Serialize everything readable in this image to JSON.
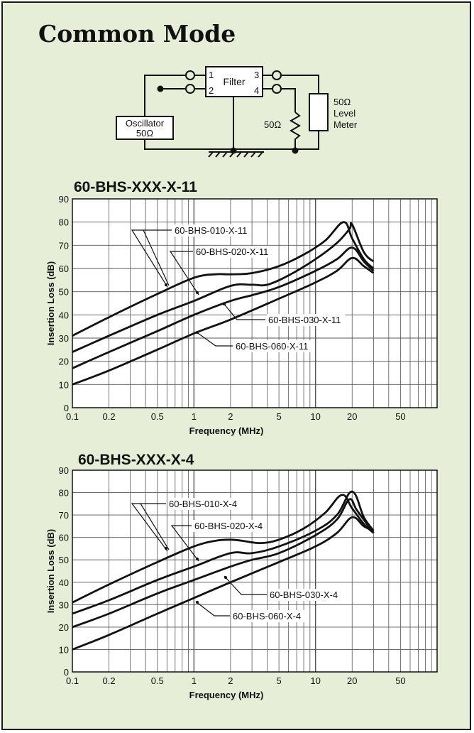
{
  "page_title": "Common Mode",
  "circuit": {
    "pin1": "1",
    "pin2": "2",
    "pin3": "3",
    "pin4": "4",
    "filter_label": "Filter",
    "oscillator_label": "Oscillator",
    "oscillator_impedance": "50Ω",
    "resistor_label": "50Ω",
    "meter_line1": "50Ω",
    "meter_line2": "Level",
    "meter_line3": "Meter"
  },
  "colors": {
    "panel_background": "#e6eed8",
    "grid": "#555555",
    "curve": "#111111"
  },
  "chart_data": [
    {
      "type": "line",
      "title": "60-BHS-XXX-X-11",
      "xlabel": "Frequency (MHz)",
      "ylabel": "Insertion Loss (dB)",
      "x_scale": "log",
      "xlim": [
        0.1,
        100
      ],
      "ylim": [
        0,
        90
      ],
      "grid": true,
      "x_tick_labels": [
        "0.1",
        "0.2",
        "0.5",
        "1",
        "2",
        "5",
        "10",
        "20",
        "50"
      ],
      "y_tick_labels": [
        "0",
        "10",
        "20",
        "30",
        "40",
        "50",
        "60",
        "70",
        "80",
        "90"
      ],
      "series": [
        {
          "name": "60-BHS-010-X-11",
          "x": [
            0.1,
            0.2,
            0.5,
            1,
            1.5,
            2,
            3,
            5,
            8,
            12,
            17,
            20,
            25,
            30
          ],
          "y": [
            31,
            39,
            49,
            56,
            57.5,
            57.5,
            58,
            61,
            66,
            72,
            80,
            73,
            64,
            60
          ]
        },
        {
          "name": "60-BHS-020-X-11",
          "x": [
            0.1,
            0.2,
            0.5,
            1,
            2,
            3,
            4,
            6,
            10,
            15,
            19,
            20,
            25,
            30
          ],
          "y": [
            24,
            31,
            40,
            46,
            52.5,
            53,
            53,
            57,
            64,
            71,
            77,
            79,
            67,
            63
          ]
        },
        {
          "name": "60-BHS-030-X-11",
          "x": [
            0.1,
            0.2,
            0.5,
            1,
            2,
            3,
            5,
            10,
            15,
            20,
            25,
            30
          ],
          "y": [
            17,
            24,
            33,
            40,
            46,
            48.5,
            52,
            59,
            64,
            69,
            63,
            59
          ]
        },
        {
          "name": "60-BHS-060-X-11",
          "x": [
            0.1,
            0.2,
            0.5,
            1,
            2,
            5,
            10,
            15,
            20,
            25,
            30
          ],
          "y": [
            10,
            16,
            25,
            32,
            38,
            47,
            54,
            59,
            64.5,
            61,
            58
          ]
        }
      ],
      "annotations": [
        "60-BHS-010-X-11",
        "60-BHS-020-X-11",
        "60-BHS-030-X-11",
        "60-BHS-060-X-11"
      ]
    },
    {
      "type": "line",
      "title": "60-BHS-XXX-X-4",
      "xlabel": "Frequency (MHz)",
      "ylabel": "Insertion Loss (dB)",
      "x_scale": "log",
      "xlim": [
        0.1,
        100
      ],
      "ylim": [
        0,
        90
      ],
      "grid": true,
      "x_tick_labels": [
        "0.1",
        "0.2",
        "0.5",
        "1",
        "2",
        "5",
        "10",
        "20",
        "50"
      ],
      "y_tick_labels": [
        "0",
        "10",
        "20",
        "30",
        "40",
        "50",
        "60",
        "70",
        "80",
        "90"
      ],
      "series": [
        {
          "name": "60-BHS-010-X-4",
          "x": [
            0.1,
            0.2,
            0.5,
            1,
            1.5,
            2,
            2.5,
            3.5,
            5,
            8,
            12,
            16.5,
            20,
            25,
            30
          ],
          "y": [
            31,
            39,
            49,
            56,
            58.5,
            59,
            58.5,
            57.5,
            59,
            64,
            71,
            79,
            73,
            66,
            62
          ]
        },
        {
          "name": "60-BHS-020-X-4",
          "x": [
            0.1,
            0.2,
            0.5,
            1,
            2,
            3,
            5,
            10,
            15,
            20,
            25,
            30
          ],
          "y": [
            26,
            32,
            41,
            47,
            53,
            53,
            56,
            63,
            70,
            80.5,
            69,
            63
          ]
        },
        {
          "name": "60-BHS-030-X-4",
          "x": [
            0.1,
            0.2,
            0.5,
            1,
            2,
            3,
            5,
            10,
            15,
            19,
            22,
            30
          ],
          "y": [
            20,
            26,
            35,
            41,
            47,
            50,
            53,
            61,
            68,
            77,
            72,
            62
          ]
        },
        {
          "name": "60-BHS-060-X-4",
          "x": [
            0.1,
            0.2,
            0.5,
            1,
            2,
            5,
            10,
            15,
            20,
            25,
            30
          ],
          "y": [
            10,
            16.5,
            26,
            33,
            40,
            49,
            56,
            62,
            69,
            65,
            63
          ]
        }
      ],
      "annotations": [
        "60-BHS-010-X-4",
        "60-BHS-020-X-4",
        "60-BHS-030-X-4",
        "60-BHS-060-X-4"
      ]
    }
  ]
}
